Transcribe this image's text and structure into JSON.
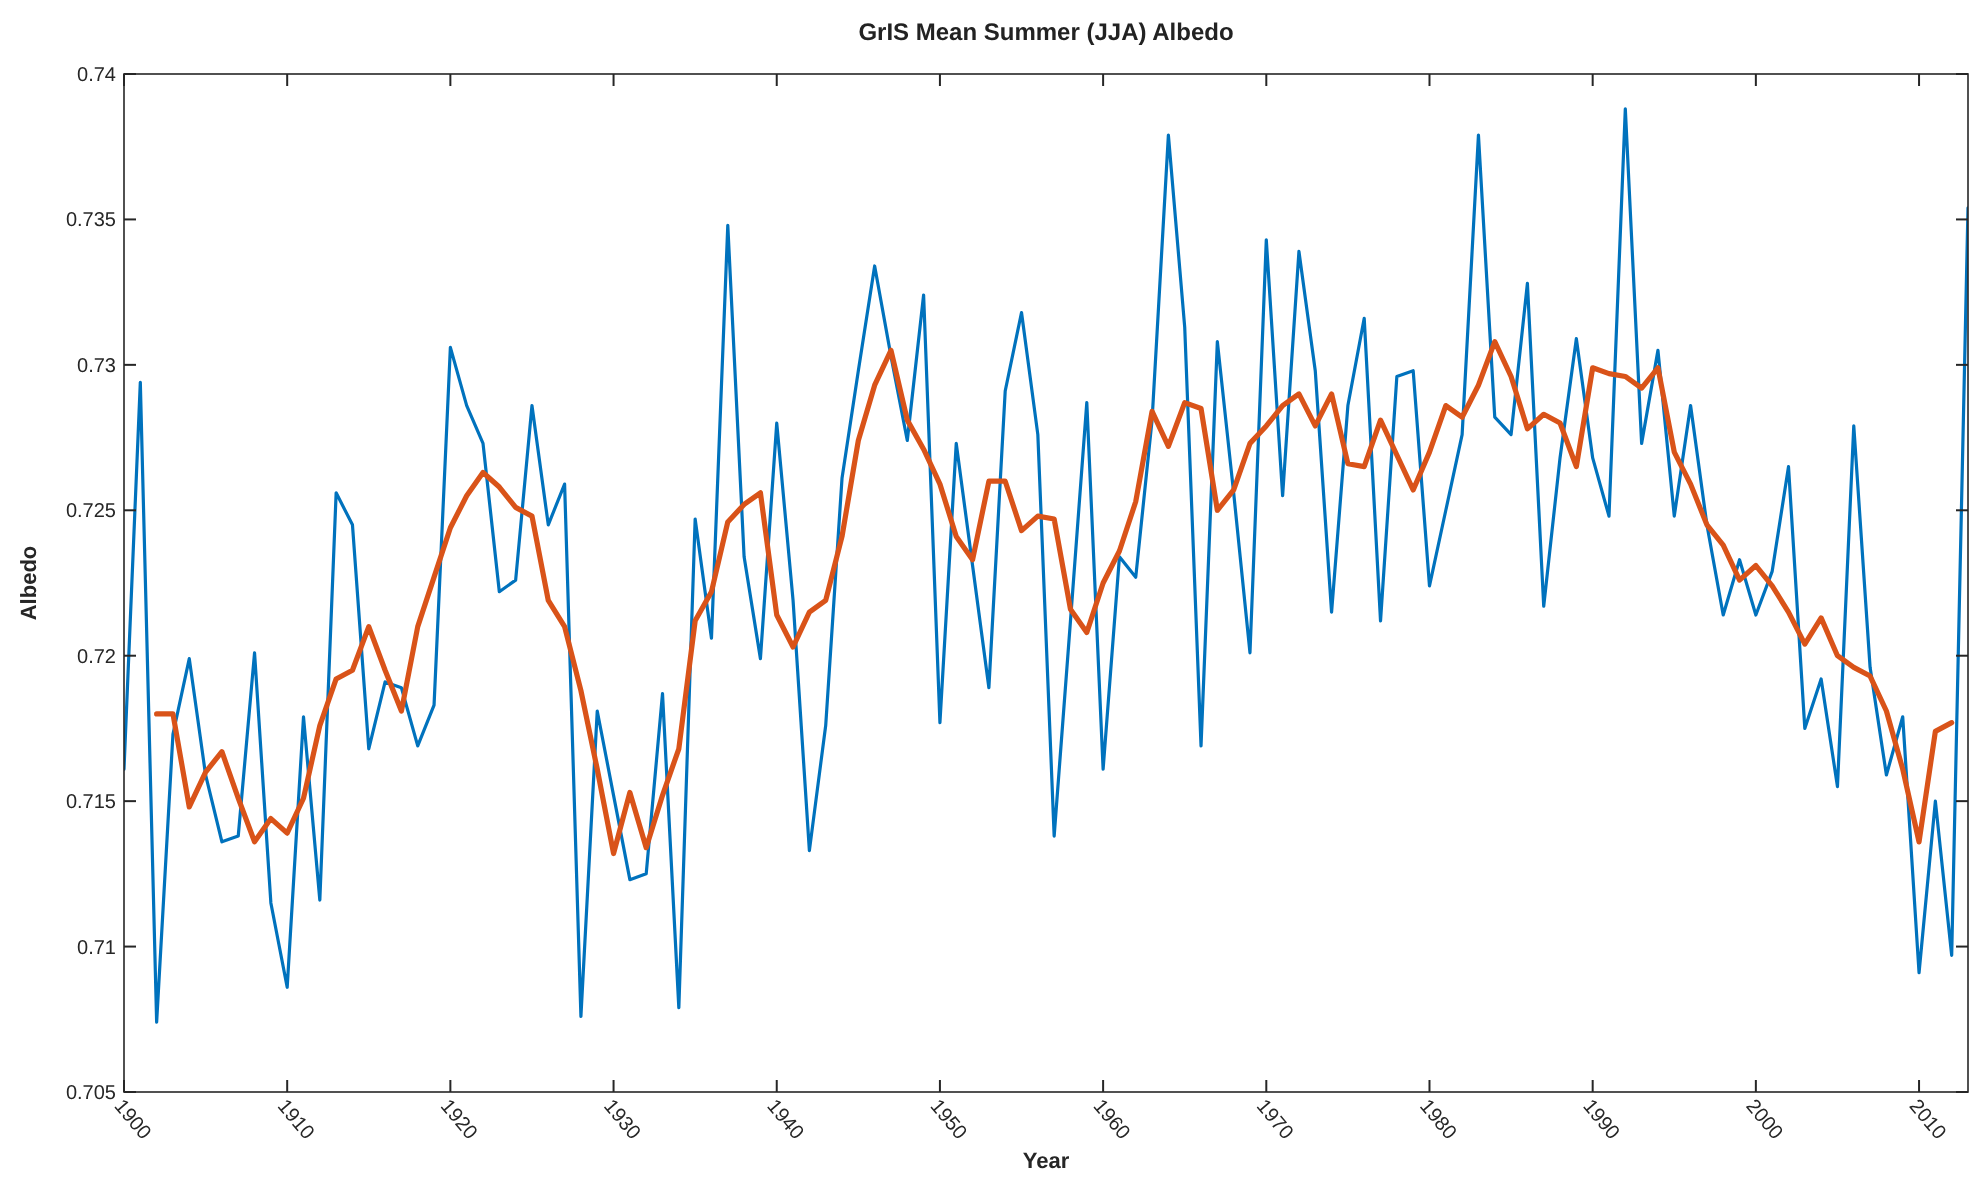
{
  "chart_data": {
    "type": "line",
    "title": "GrIS Mean Summer (JJA) Albedo",
    "xlabel": "Year",
    "ylabel": "Albedo",
    "x": [
      1900,
      1901,
      1902,
      1903,
      1904,
      1905,
      1906,
      1907,
      1908,
      1909,
      1910,
      1911,
      1912,
      1913,
      1914,
      1915,
      1916,
      1917,
      1918,
      1919,
      1920,
      1921,
      1922,
      1923,
      1924,
      1925,
      1926,
      1927,
      1928,
      1929,
      1930,
      1931,
      1932,
      1933,
      1934,
      1935,
      1936,
      1937,
      1938,
      1939,
      1940,
      1941,
      1942,
      1943,
      1944,
      1945,
      1946,
      1947,
      1948,
      1949,
      1950,
      1951,
      1952,
      1953,
      1954,
      1955,
      1956,
      1957,
      1958,
      1959,
      1960,
      1961,
      1962,
      1963,
      1964,
      1965,
      1966,
      1967,
      1968,
      1969,
      1970,
      1971,
      1972,
      1973,
      1974,
      1975,
      1976,
      1977,
      1978,
      1979,
      1980,
      1981,
      1982,
      1983,
      1984,
      1985,
      1986,
      1987,
      1988,
      1989,
      1990,
      1991,
      1992,
      1993,
      1994,
      1995,
      1996,
      1997,
      1998,
      1999,
      2000,
      2001,
      2002,
      2003,
      2004,
      2005,
      2006,
      2007,
      2008,
      2009,
      2010,
      2011,
      2012,
      2013
    ],
    "series": [
      {
        "color": "#0072bd",
        "values": [
          0.7161,
          0.7294,
          0.7074,
          0.7173,
          0.7199,
          0.7159,
          0.7136,
          0.7138,
          0.7201,
          0.7115,
          0.7086,
          0.7179,
          0.7116,
          0.7256,
          0.7245,
          0.7168,
          0.7191,
          0.7189,
          0.7169,
          0.7183,
          0.7306,
          0.7286,
          0.7273,
          0.7222,
          0.7226,
          0.7286,
          0.7245,
          0.7259,
          0.7076,
          0.7181,
          0.7152,
          0.7123,
          0.7125,
          0.7187,
          0.7079,
          0.7247,
          0.7206,
          0.7348,
          0.7234,
          0.7199,
          0.728,
          0.7219,
          0.7133,
          0.7176,
          0.7261,
          0.7298,
          0.7334,
          0.7303,
          0.7274,
          0.7324,
          0.7177,
          0.7273,
          0.7231,
          0.7189,
          0.7291,
          0.7318,
          0.7276,
          0.7138,
          0.7212,
          0.7287,
          0.7161,
          0.7234,
          0.7227,
          0.7281,
          0.7379,
          0.7313,
          0.7169,
          0.7308,
          0.7256,
          0.7201,
          0.7343,
          0.7255,
          0.7339,
          0.7298,
          0.7215,
          0.7286,
          0.7316,
          0.7212,
          0.7296,
          0.7298,
          0.7224,
          0.725,
          0.7276,
          0.7379,
          0.7282,
          0.7276,
          0.7328,
          0.7217,
          0.7268,
          0.7309,
          0.7268,
          0.7248,
          0.7388,
          0.7273,
          0.7305,
          0.7248,
          0.7286,
          0.7245,
          0.7214,
          0.7233,
          0.7214,
          0.7229,
          0.7265,
          0.7175,
          0.7192,
          0.7155,
          0.7279,
          0.7196,
          0.7159,
          0.7179,
          0.7091,
          0.715,
          0.7097,
          0.7354
        ]
      },
      {
        "color": "#d95319",
        "values": [
          null,
          null,
          0.718,
          0.718,
          0.7148,
          0.716,
          0.7167,
          0.7151,
          0.7136,
          0.7144,
          0.7139,
          0.7151,
          0.7176,
          0.7192,
          0.7195,
          0.721,
          0.7195,
          0.7181,
          0.721,
          0.7227,
          0.7244,
          0.7255,
          0.7263,
          0.7258,
          0.7251,
          0.7248,
          0.7219,
          0.721,
          0.7188,
          0.7161,
          0.7132,
          0.7153,
          0.7134,
          0.7152,
          0.7168,
          0.7212,
          0.7222,
          0.7246,
          0.7252,
          0.7256,
          0.7214,
          0.7203,
          0.7215,
          0.7219,
          0.7241,
          0.7274,
          0.7293,
          0.7305,
          0.7281,
          0.7271,
          0.7259,
          0.7241,
          0.7233,
          0.726,
          0.726,
          0.7243,
          0.7248,
          0.7247,
          0.7216,
          0.7208,
          0.7225,
          0.7236,
          0.7253,
          0.7284,
          0.7272,
          0.7287,
          0.7285,
          0.725,
          0.7257,
          0.7273,
          0.7279,
          0.7286,
          0.729,
          0.7279,
          0.729,
          0.7266,
          0.7265,
          0.7281,
          0.7269,
          0.7257,
          0.727,
          0.7286,
          0.7282,
          0.7293,
          0.7308,
          0.7296,
          0.7278,
          0.7283,
          0.728,
          0.7265,
          0.7299,
          0.7297,
          0.7296,
          0.7292,
          0.7299,
          0.727,
          0.7259,
          0.7245,
          0.7238,
          0.7226,
          0.7231,
          0.7224,
          0.7215,
          0.7204,
          0.7213,
          0.72,
          0.7196,
          0.7193,
          0.7181,
          0.7161,
          0.7136,
          0.7174,
          0.7177,
          null
        ]
      }
    ],
    "xlim": [
      1900,
      2013
    ],
    "xticks": [
      1900,
      1910,
      1920,
      1930,
      1940,
      1950,
      1960,
      1970,
      1980,
      1990,
      2000,
      2010
    ],
    "ylim": [
      0.705,
      0.74
    ],
    "yticks": [
      0.705,
      0.71,
      0.715,
      0.72,
      0.725,
      0.73,
      0.735,
      0.74
    ],
    "grid": false,
    "marker": "none",
    "line_style": "solid"
  }
}
